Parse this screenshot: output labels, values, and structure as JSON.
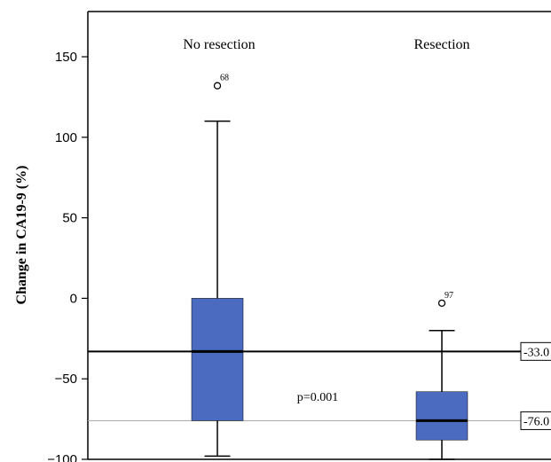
{
  "chart_data": {
    "type": "box",
    "ylabel": "Change in CA19-9 (%)",
    "ylim": [
      -100,
      175
    ],
    "yticks": [
      -100,
      -50,
      0,
      50,
      100,
      150
    ],
    "ytick_labels": [
      "−100",
      "−50",
      "0",
      "50",
      "100",
      "150"
    ],
    "categories": [
      "No resection",
      "Resection"
    ],
    "boxes": [
      {
        "name": "No resection",
        "whisker_low": -98,
        "q1": -76,
        "median": -33,
        "q3": 0,
        "whisker_high": 110,
        "outliers": [
          {
            "value": 132,
            "label": "68"
          }
        ]
      },
      {
        "name": "Resection",
        "whisker_low": -100,
        "q1": -88,
        "median": -76,
        "q3": -58,
        "whisker_high": -20,
        "outliers": [
          {
            "value": -3,
            "label": "97"
          }
        ]
      }
    ],
    "reference_lines": [
      {
        "value": -33,
        "label": "-33.0",
        "color": "#000000"
      },
      {
        "value": -76,
        "label": "-76.0",
        "color": "#b0b0b0"
      }
    ],
    "annotation": "p=0.001",
    "box_color": "#4a6bbf",
    "grid": false
  }
}
